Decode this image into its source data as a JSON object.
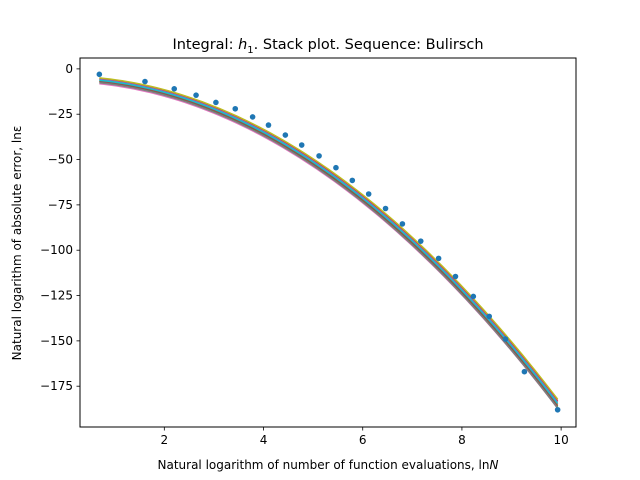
{
  "chart_data": {
    "type": "line",
    "title_prefix": "Integral: ",
    "title_symbol": "h",
    "title_subscript": "1",
    "title_suffix": ". Stack plot. Sequence: Bulirsch",
    "xlabel_text": "Natural logarithm of number of function evaluations, ln",
    "xlabel_symbol": "N",
    "ylabel": "Natural logarithm of absolute error, lnε",
    "xlim": [
      0.3,
      10.3
    ],
    "ylim": [
      -197.5,
      6
    ],
    "x_ticks": [
      2,
      4,
      6,
      8,
      10
    ],
    "y_ticks": [
      0,
      -25,
      -50,
      -75,
      -100,
      -125,
      -150,
      -175
    ],
    "grid": false,
    "points": {
      "color": "#1f77b4",
      "x": [
        0.69,
        1.61,
        2.2,
        2.64,
        3.04,
        3.43,
        3.78,
        4.1,
        4.44,
        4.77,
        5.12,
        5.46,
        5.79,
        6.12,
        6.46,
        6.8,
        7.17,
        7.53,
        7.87,
        8.23,
        8.55,
        8.88,
        9.26,
        9.93
      ],
      "y": [
        -3,
        -7,
        -11,
        -14.5,
        -18.5,
        -22,
        -26.5,
        -31,
        -36.5,
        -42,
        -48,
        -54.5,
        -61.5,
        -69,
        -77,
        -85.5,
        -95,
        -104.5,
        -114.5,
        -125.5,
        -136.5,
        -149,
        -167,
        -188
      ]
    },
    "series": [
      {
        "color": "#ff7f0e",
        "a": -5.5,
        "b": 0.31,
        "c": 1.79
      },
      {
        "color": "#2ca02c",
        "a": -6.0,
        "b": 0.39,
        "c": 1.79
      },
      {
        "color": "#d62728",
        "a": -4.5,
        "b": 0.21,
        "c": 1.79
      },
      {
        "color": "#9467bd",
        "a": -4.8,
        "b": 0.26,
        "c": 1.79
      },
      {
        "color": "#8c564b",
        "a": -5.8,
        "b": 0.35,
        "c": 1.79
      },
      {
        "color": "#e377c2",
        "a": -7.0,
        "b": 0.47,
        "c": 1.78
      },
      {
        "color": "#7f7f7f",
        "a": -6.5,
        "b": 0.42,
        "c": 1.79
      },
      {
        "color": "#bcbd22",
        "a": -4.0,
        "b": 0.17,
        "c": 1.79
      },
      {
        "color": "#17becf",
        "a": -5.2,
        "b": 0.29,
        "c": 1.79
      }
    ]
  }
}
